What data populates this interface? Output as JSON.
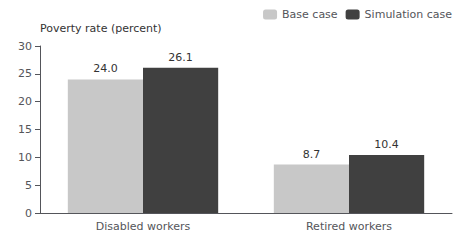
{
  "chart_data": {
    "type": "bar",
    "y_label": "Poverty rate (percent)",
    "categories": [
      "Disabled workers",
      "Retired workers"
    ],
    "series": [
      {
        "name": "Base case",
        "color": "#c8c8c8",
        "values": [
          24.0,
          8.7
        ],
        "value_labels": [
          "24.0",
          "8.7"
        ]
      },
      {
        "name": "Simulation case",
        "color": "#404040",
        "values": [
          26.1,
          10.4
        ],
        "value_labels": [
          "26.1",
          "10.4"
        ]
      }
    ],
    "ylim": [
      0,
      30
    ],
    "yticks": [
      0,
      5,
      10,
      15,
      20,
      25,
      30
    ],
    "grid": false,
    "legend": "upper right",
    "data_labels": true
  }
}
